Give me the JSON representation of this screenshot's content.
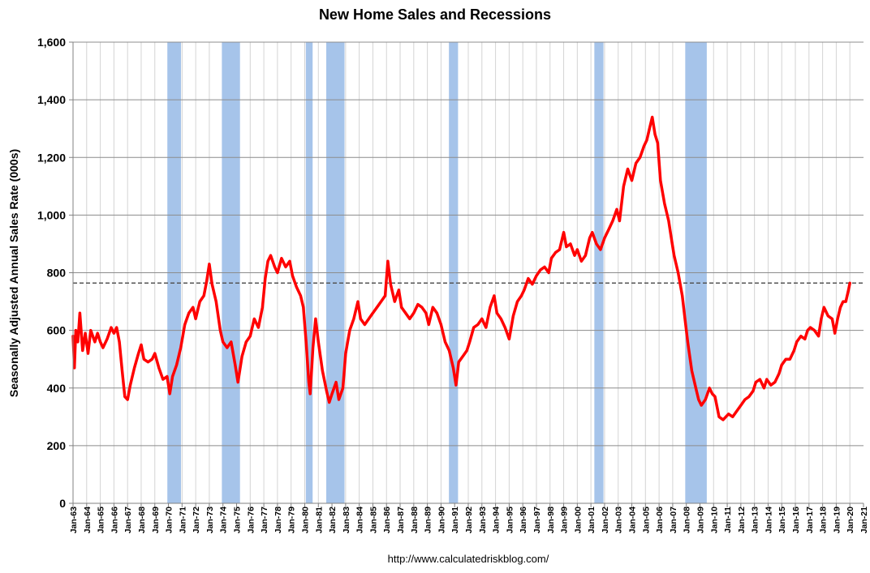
{
  "chart_data": {
    "type": "line",
    "title": "New Home Sales and Recessions",
    "ylabel": "Seasonally Adjusted Annual Sales Rate (000s)",
    "xlabel": "",
    "source": "http://www.calculatedriskblog.com/",
    "ylim": [
      0,
      1600
    ],
    "xlim": [
      1963,
      2021
    ],
    "y_ticks": [
      0,
      200,
      400,
      600,
      800,
      1000,
      1200,
      1400,
      1600
    ],
    "y_tick_labels": [
      "0",
      "200",
      "400",
      "600",
      "800",
      "1,000",
      "1,200",
      "1,400",
      "1,600"
    ],
    "x_tick_labels": [
      "Jan-63",
      "Jan-64",
      "Jan-65",
      "Jan-66",
      "Jan-67",
      "Jan-68",
      "Jan-69",
      "Jan-70",
      "Jan-71",
      "Jan-72",
      "Jan-73",
      "Jan-74",
      "Jan-75",
      "Jan-76",
      "Jan-77",
      "Jan-78",
      "Jan-79",
      "Jan-80",
      "Jan-81",
      "Jan-82",
      "Jan-83",
      "Jan-84",
      "Jan-85",
      "Jan-86",
      "Jan-87",
      "Jan-88",
      "Jan-89",
      "Jan-90",
      "Jan-91",
      "Jan-92",
      "Jan-93",
      "Jan-94",
      "Jan-95",
      "Jan-96",
      "Jan-97",
      "Jan-98",
      "Jan-99",
      "Jan-00",
      "Jan-01",
      "Jan-02",
      "Jan-03",
      "Jan-04",
      "Jan-05",
      "Jan-06",
      "Jan-07",
      "Jan-08",
      "Jan-09",
      "Jan-10",
      "Jan-11",
      "Jan-12",
      "Jan-13",
      "Jan-14",
      "Jan-15",
      "Jan-16",
      "Jan-17",
      "Jan-18",
      "Jan-19",
      "Jan-20",
      "Jan-21"
    ],
    "reference_line": {
      "value": 764,
      "style": "dashed"
    },
    "recessions": [
      {
        "start": 1969.92,
        "end": 1970.92
      },
      {
        "start": 1973.92,
        "end": 1975.25
      },
      {
        "start": 1980.08,
        "end": 1980.58
      },
      {
        "start": 1981.58,
        "end": 1982.92
      },
      {
        "start": 1990.58,
        "end": 1991.25
      },
      {
        "start": 2001.25,
        "end": 2001.92
      },
      {
        "start": 2007.92,
        "end": 2009.5
      }
    ],
    "series": [
      {
        "name": "New Home Sales",
        "color": "#ff0000",
        "points": [
          [
            1963.0,
            580
          ],
          [
            1963.1,
            470
          ],
          [
            1963.2,
            600
          ],
          [
            1963.35,
            560
          ],
          [
            1963.5,
            660
          ],
          [
            1963.7,
            530
          ],
          [
            1963.9,
            590
          ],
          [
            1964.1,
            520
          ],
          [
            1964.3,
            600
          ],
          [
            1964.6,
            560
          ],
          [
            1964.8,
            590
          ],
          [
            1965.0,
            560
          ],
          [
            1965.2,
            540
          ],
          [
            1965.5,
            570
          ],
          [
            1965.8,
            610
          ],
          [
            1966.0,
            590
          ],
          [
            1966.2,
            610
          ],
          [
            1966.4,
            560
          ],
          [
            1966.6,
            460
          ],
          [
            1966.8,
            370
          ],
          [
            1967.0,
            360
          ],
          [
            1967.2,
            410
          ],
          [
            1967.5,
            470
          ],
          [
            1967.8,
            520
          ],
          [
            1968.0,
            550
          ],
          [
            1968.2,
            500
          ],
          [
            1968.5,
            490
          ],
          [
            1968.8,
            500
          ],
          [
            1969.0,
            520
          ],
          [
            1969.3,
            470
          ],
          [
            1969.6,
            430
          ],
          [
            1969.9,
            440
          ],
          [
            1970.1,
            380
          ],
          [
            1970.3,
            440
          ],
          [
            1970.6,
            480
          ],
          [
            1970.9,
            540
          ],
          [
            1971.2,
            620
          ],
          [
            1971.5,
            660
          ],
          [
            1971.8,
            680
          ],
          [
            1972.0,
            640
          ],
          [
            1972.3,
            700
          ],
          [
            1972.6,
            720
          ],
          [
            1972.8,
            770
          ],
          [
            1973.0,
            830
          ],
          [
            1973.2,
            760
          ],
          [
            1973.5,
            700
          ],
          [
            1973.8,
            600
          ],
          [
            1974.0,
            560
          ],
          [
            1974.3,
            540
          ],
          [
            1974.6,
            560
          ],
          [
            1974.9,
            480
          ],
          [
            1975.1,
            420
          ],
          [
            1975.4,
            510
          ],
          [
            1975.7,
            560
          ],
          [
            1976.0,
            580
          ],
          [
            1976.3,
            640
          ],
          [
            1976.6,
            610
          ],
          [
            1976.9,
            680
          ],
          [
            1977.1,
            780
          ],
          [
            1977.3,
            840
          ],
          [
            1977.5,
            860
          ],
          [
            1977.8,
            820
          ],
          [
            1978.0,
            800
          ],
          [
            1978.3,
            850
          ],
          [
            1978.6,
            820
          ],
          [
            1978.9,
            840
          ],
          [
            1979.1,
            790
          ],
          [
            1979.4,
            750
          ],
          [
            1979.7,
            720
          ],
          [
            1979.9,
            680
          ],
          [
            1980.1,
            560
          ],
          [
            1980.3,
            420
          ],
          [
            1980.4,
            380
          ],
          [
            1980.6,
            540
          ],
          [
            1980.8,
            640
          ],
          [
            1981.0,
            560
          ],
          [
            1981.3,
            460
          ],
          [
            1981.6,
            390
          ],
          [
            1981.8,
            350
          ],
          [
            1982.0,
            380
          ],
          [
            1982.3,
            420
          ],
          [
            1982.5,
            360
          ],
          [
            1982.8,
            400
          ],
          [
            1983.0,
            520
          ],
          [
            1983.3,
            600
          ],
          [
            1983.6,
            640
          ],
          [
            1983.9,
            700
          ],
          [
            1984.1,
            640
          ],
          [
            1984.4,
            620
          ],
          [
            1984.7,
            640
          ],
          [
            1985.0,
            660
          ],
          [
            1985.3,
            680
          ],
          [
            1985.6,
            700
          ],
          [
            1985.9,
            720
          ],
          [
            1986.1,
            840
          ],
          [
            1986.3,
            760
          ],
          [
            1986.6,
            700
          ],
          [
            1986.9,
            740
          ],
          [
            1987.1,
            680
          ],
          [
            1987.4,
            660
          ],
          [
            1987.7,
            640
          ],
          [
            1988.0,
            660
          ],
          [
            1988.3,
            690
          ],
          [
            1988.6,
            680
          ],
          [
            1988.9,
            660
          ],
          [
            1989.1,
            620
          ],
          [
            1989.4,
            680
          ],
          [
            1989.7,
            660
          ],
          [
            1990.0,
            620
          ],
          [
            1990.3,
            560
          ],
          [
            1990.6,
            530
          ],
          [
            1990.9,
            470
          ],
          [
            1991.1,
            410
          ],
          [
            1991.3,
            490
          ],
          [
            1991.6,
            510
          ],
          [
            1991.9,
            530
          ],
          [
            1992.1,
            560
          ],
          [
            1992.4,
            610
          ],
          [
            1992.7,
            620
          ],
          [
            1993.0,
            640
          ],
          [
            1993.3,
            610
          ],
          [
            1993.6,
            680
          ],
          [
            1993.9,
            720
          ],
          [
            1994.1,
            660
          ],
          [
            1994.4,
            640
          ],
          [
            1994.7,
            610
          ],
          [
            1995.0,
            570
          ],
          [
            1995.3,
            650
          ],
          [
            1995.6,
            700
          ],
          [
            1995.9,
            720
          ],
          [
            1996.1,
            740
          ],
          [
            1996.4,
            780
          ],
          [
            1996.7,
            760
          ],
          [
            1997.0,
            790
          ],
          [
            1997.3,
            810
          ],
          [
            1997.6,
            820
          ],
          [
            1997.9,
            800
          ],
          [
            1998.1,
            850
          ],
          [
            1998.4,
            870
          ],
          [
            1998.7,
            880
          ],
          [
            1999.0,
            940
          ],
          [
            1999.2,
            890
          ],
          [
            1999.5,
            900
          ],
          [
            1999.8,
            860
          ],
          [
            2000.0,
            880
          ],
          [
            2000.3,
            840
          ],
          [
            2000.6,
            860
          ],
          [
            2000.9,
            920
          ],
          [
            2001.1,
            940
          ],
          [
            2001.4,
            900
          ],
          [
            2001.7,
            880
          ],
          [
            2002.0,
            920
          ],
          [
            2002.3,
            950
          ],
          [
            2002.6,
            980
          ],
          [
            2002.9,
            1020
          ],
          [
            2003.1,
            980
          ],
          [
            2003.4,
            1100
          ],
          [
            2003.7,
            1160
          ],
          [
            2004.0,
            1120
          ],
          [
            2004.3,
            1180
          ],
          [
            2004.6,
            1200
          ],
          [
            2004.9,
            1240
          ],
          [
            2005.1,
            1260
          ],
          [
            2005.3,
            1300
          ],
          [
            2005.5,
            1340
          ],
          [
            2005.7,
            1280
          ],
          [
            2005.9,
            1250
          ],
          [
            2006.1,
            1120
          ],
          [
            2006.4,
            1040
          ],
          [
            2006.7,
            980
          ],
          [
            2006.9,
            920
          ],
          [
            2007.1,
            860
          ],
          [
            2007.4,
            800
          ],
          [
            2007.7,
            720
          ],
          [
            2007.9,
            640
          ],
          [
            2008.1,
            560
          ],
          [
            2008.4,
            460
          ],
          [
            2008.7,
            400
          ],
          [
            2008.9,
            360
          ],
          [
            2009.1,
            340
          ],
          [
            2009.4,
            360
          ],
          [
            2009.7,
            400
          ],
          [
            2009.9,
            380
          ],
          [
            2010.1,
            370
          ],
          [
            2010.4,
            300
          ],
          [
            2010.7,
            290
          ],
          [
            2010.9,
            300
          ],
          [
            2011.1,
            310
          ],
          [
            2011.4,
            300
          ],
          [
            2011.7,
            320
          ],
          [
            2012.0,
            340
          ],
          [
            2012.3,
            360
          ],
          [
            2012.6,
            370
          ],
          [
            2012.9,
            390
          ],
          [
            2013.1,
            420
          ],
          [
            2013.4,
            430
          ],
          [
            2013.7,
            400
          ],
          [
            2013.9,
            430
          ],
          [
            2014.2,
            410
          ],
          [
            2014.5,
            420
          ],
          [
            2014.8,
            450
          ],
          [
            2015.0,
            480
          ],
          [
            2015.3,
            500
          ],
          [
            2015.6,
            500
          ],
          [
            2015.9,
            530
          ],
          [
            2016.1,
            560
          ],
          [
            2016.4,
            580
          ],
          [
            2016.7,
            570
          ],
          [
            2016.9,
            600
          ],
          [
            2017.1,
            610
          ],
          [
            2017.4,
            600
          ],
          [
            2017.7,
            580
          ],
          [
            2017.9,
            640
          ],
          [
            2018.1,
            680
          ],
          [
            2018.4,
            650
          ],
          [
            2018.7,
            640
          ],
          [
            2018.9,
            590
          ],
          [
            2019.1,
            640
          ],
          [
            2019.3,
            680
          ],
          [
            2019.5,
            700
          ],
          [
            2019.7,
            700
          ],
          [
            2019.9,
            740
          ],
          [
            2020.0,
            764
          ]
        ]
      }
    ]
  }
}
